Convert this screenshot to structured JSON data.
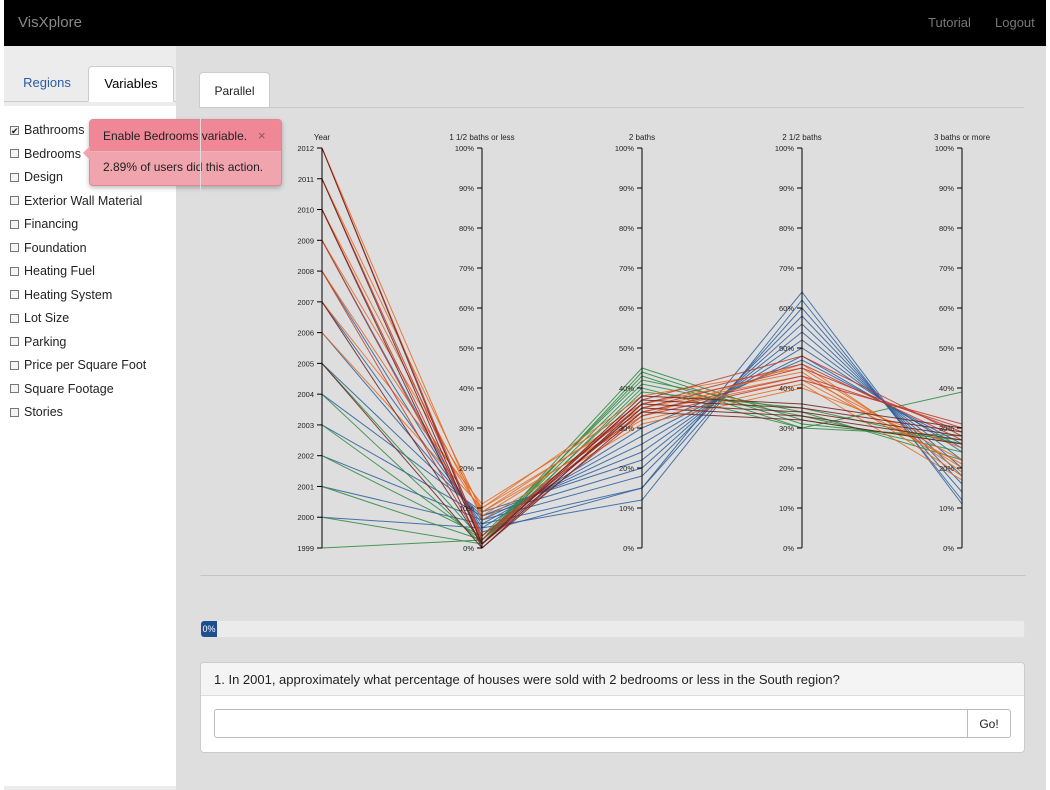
{
  "navbar": {
    "brand": "VisXplore",
    "tutorial": "Tutorial",
    "logout": "Logout"
  },
  "sidebar": {
    "tabs": [
      {
        "label": "Regions",
        "active": false
      },
      {
        "label": "Variables",
        "active": true
      }
    ],
    "variables": [
      {
        "label": "Bathrooms",
        "checked": true
      },
      {
        "label": "Bedrooms",
        "checked": false
      },
      {
        "label": "Design",
        "checked": false
      },
      {
        "label": "Exterior Wall Material",
        "checked": false
      },
      {
        "label": "Financing",
        "checked": false
      },
      {
        "label": "Foundation",
        "checked": false
      },
      {
        "label": "Heating Fuel",
        "checked": false
      },
      {
        "label": "Heating System",
        "checked": false
      },
      {
        "label": "Lot Size",
        "checked": false
      },
      {
        "label": "Parking",
        "checked": false
      },
      {
        "label": "Price per Square Foot",
        "checked": false
      },
      {
        "label": "Square Footage",
        "checked": false
      },
      {
        "label": "Stories",
        "checked": false
      }
    ]
  },
  "tooltip": {
    "title": "Enable Bedrooms variable.",
    "close": "×",
    "body": "2.89% of users did this action."
  },
  "main": {
    "tab_label": "Parallel"
  },
  "progress": {
    "value_label": "0%",
    "value": 0
  },
  "question": {
    "text": "1. In 2001, approximately what percentage of houses were sold with 2 bedrooms or less in the South region?",
    "input_value": "",
    "button_label": "Go!"
  },
  "colors": {
    "navbar": "#000000",
    "accent": "#1f4e90",
    "tooltip": "#f0a4ae",
    "series_blue": "#2a5f9e",
    "series_orange": "#e8691e",
    "series_green": "#2b8a3e",
    "series_red": "#c0392b",
    "series_darkred": "#6b1f1f"
  },
  "chart_data": {
    "type": "parallel-coordinates",
    "dimensions": [
      {
        "name": "Year",
        "type": "year",
        "ticks": [
          "1999",
          "2000",
          "2001",
          "2002",
          "2003",
          "2004",
          "2005",
          "2006",
          "2007",
          "2008",
          "2009",
          "2010",
          "2011",
          "2012"
        ],
        "range": [
          1999,
          2012
        ]
      },
      {
        "name": "1 1/2 baths or less",
        "type": "percent",
        "range": [
          0,
          100
        ],
        "ticks": [
          "0%",
          "10%",
          "20%",
          "30%",
          "40%",
          "50%",
          "60%",
          "70%",
          "80%",
          "90%",
          "100%"
        ]
      },
      {
        "name": "2 baths",
        "type": "percent",
        "range": [
          0,
          100
        ],
        "ticks": [
          "0%",
          "10%",
          "20%",
          "30%",
          "40%",
          "50%",
          "60%",
          "70%",
          "80%",
          "90%",
          "100%"
        ]
      },
      {
        "name": "2 1/2 baths",
        "type": "percent",
        "range": [
          0,
          100
        ],
        "ticks": [
          "0%",
          "10%",
          "20%",
          "30%",
          "40%",
          "50%",
          "60%",
          "70%",
          "80%",
          "90%",
          "100%"
        ]
      },
      {
        "name": "3 baths or more",
        "type": "percent",
        "range": [
          0,
          100
        ],
        "ticks": [
          "0%",
          "10%",
          "20%",
          "30%",
          "40%",
          "50%",
          "60%",
          "70%",
          "80%",
          "90%",
          "100%"
        ]
      }
    ],
    "lines": [
      {
        "color": "blue",
        "values": [
          2000,
          5,
          12,
          62,
          12
        ]
      },
      {
        "color": "blue",
        "values": [
          2001,
          6,
          15,
          60,
          14
        ]
      },
      {
        "color": "blue",
        "values": [
          2002,
          7,
          18,
          58,
          16
        ]
      },
      {
        "color": "blue",
        "values": [
          2003,
          8,
          20,
          56,
          18
        ]
      },
      {
        "color": "blue",
        "values": [
          2004,
          9,
          22,
          54,
          20
        ]
      },
      {
        "color": "blue",
        "values": [
          2005,
          8,
          24,
          52,
          22
        ]
      },
      {
        "color": "blue",
        "values": [
          2006,
          7,
          26,
          50,
          24
        ]
      },
      {
        "color": "blue",
        "values": [
          2007,
          6,
          28,
          48,
          25
        ]
      },
      {
        "color": "blue",
        "values": [
          2008,
          5,
          30,
          47,
          26
        ]
      },
      {
        "color": "blue",
        "values": [
          2009,
          4,
          15,
          64,
          11
        ]
      },
      {
        "color": "green",
        "values": [
          1999,
          2,
          45,
          32,
          26
        ]
      },
      {
        "color": "green",
        "values": [
          2000,
          1,
          44,
          31,
          27
        ]
      },
      {
        "color": "green",
        "values": [
          2001,
          2,
          43,
          30,
          28
        ]
      },
      {
        "color": "green",
        "values": [
          2002,
          3,
          42,
          34,
          22
        ]
      },
      {
        "color": "green",
        "values": [
          2003,
          2,
          41,
          33,
          24
        ]
      },
      {
        "color": "green",
        "values": [
          2004,
          1,
          40,
          30,
          39
        ]
      },
      {
        "color": "green",
        "values": [
          2005,
          2,
          39,
          35,
          26
        ]
      },
      {
        "color": "orange",
        "values": [
          2006,
          10,
          38,
          45,
          20
        ]
      },
      {
        "color": "orange",
        "values": [
          2007,
          11,
          36,
          44,
          18
        ]
      },
      {
        "color": "orange",
        "values": [
          2008,
          9,
          35,
          43,
          22
        ]
      },
      {
        "color": "orange",
        "values": [
          2009,
          10,
          34,
          42,
          21
        ]
      },
      {
        "color": "orange",
        "values": [
          2010,
          8,
          33,
          46,
          19
        ]
      },
      {
        "color": "orange",
        "values": [
          2011,
          9,
          32,
          41,
          17
        ]
      },
      {
        "color": "orange",
        "values": [
          2012,
          7,
          31,
          40,
          25
        ]
      },
      {
        "color": "red",
        "values": [
          2010,
          2,
          37,
          48,
          28
        ]
      },
      {
        "color": "red",
        "values": [
          2011,
          3,
          36,
          46,
          27
        ]
      },
      {
        "color": "red",
        "values": [
          2012,
          2,
          35,
          45,
          29
        ]
      },
      {
        "color": "red",
        "values": [
          2009,
          3,
          34,
          43,
          30
        ]
      },
      {
        "color": "red",
        "values": [
          2008,
          1,
          33,
          42,
          31
        ]
      },
      {
        "color": "darkred",
        "values": [
          2012,
          1,
          38,
          36,
          30
        ]
      },
      {
        "color": "darkred",
        "values": [
          2011,
          1,
          37,
          35,
          29
        ]
      },
      {
        "color": "darkred",
        "values": [
          2010,
          0,
          36,
          34,
          28
        ]
      },
      {
        "color": "darkred",
        "values": [
          2007,
          1,
          35,
          33,
          27
        ]
      },
      {
        "color": "darkred",
        "values": [
          2005,
          0,
          34,
          32,
          26
        ]
      }
    ]
  }
}
